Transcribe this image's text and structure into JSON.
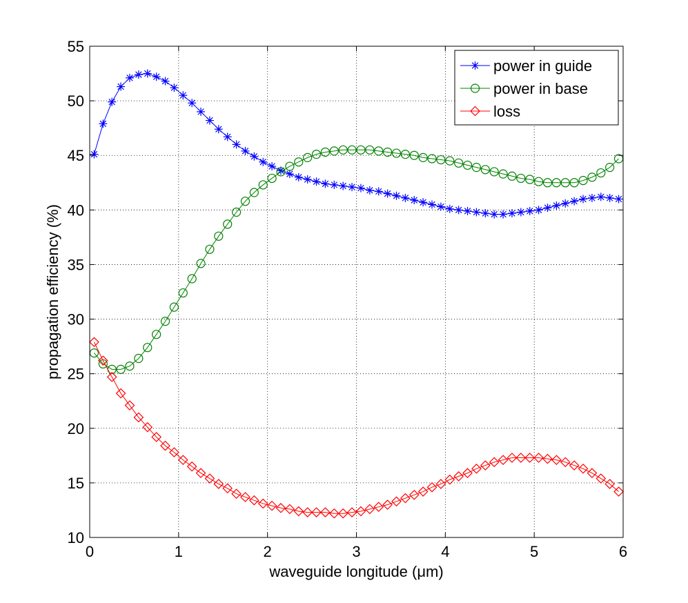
{
  "chart_data": {
    "type": "line",
    "title": "",
    "xlabel": "waveguide longitude (μm)",
    "ylabel": "propagation efficiency (%)",
    "xlim": [
      0,
      6
    ],
    "ylim": [
      10,
      55
    ],
    "xticks": [
      "0",
      "1",
      "2",
      "3",
      "4",
      "5",
      "6"
    ],
    "yticks": [
      "10",
      "15",
      "20",
      "25",
      "30",
      "35",
      "40",
      "45",
      "50",
      "55"
    ],
    "grid": true,
    "legend_position": "top-right",
    "x": [
      0.05,
      0.15,
      0.25,
      0.35,
      0.45,
      0.55,
      0.65,
      0.75,
      0.85,
      0.95,
      1.05,
      1.15,
      1.25,
      1.35,
      1.45,
      1.55,
      1.65,
      1.75,
      1.85,
      1.95,
      2.05,
      2.15,
      2.25,
      2.35,
      2.45,
      2.55,
      2.65,
      2.75,
      2.85,
      2.95,
      3.05,
      3.15,
      3.25,
      3.35,
      3.45,
      3.55,
      3.65,
      3.75,
      3.85,
      3.95,
      4.05,
      4.15,
      4.25,
      4.35,
      4.45,
      4.55,
      4.65,
      4.75,
      4.85,
      4.95,
      5.05,
      5.15,
      5.25,
      5.35,
      5.45,
      5.55,
      5.65,
      5.75,
      5.85,
      5.95
    ],
    "series": [
      {
        "name": "power in guide",
        "color": "#0000ff",
        "marker": "asterisk",
        "values": [
          45.1,
          47.9,
          49.9,
          51.3,
          52.1,
          52.4,
          52.5,
          52.2,
          51.8,
          51.2,
          50.5,
          49.8,
          49.0,
          48.2,
          47.4,
          46.7,
          46.0,
          45.4,
          44.9,
          44.4,
          44.0,
          43.6,
          43.3,
          43.0,
          42.8,
          42.6,
          42.4,
          42.3,
          42.2,
          42.1,
          42.0,
          41.8,
          41.7,
          41.5,
          41.3,
          41.1,
          40.9,
          40.7,
          40.5,
          40.3,
          40.1,
          40.0,
          39.9,
          39.8,
          39.7,
          39.6,
          39.6,
          39.7,
          39.8,
          39.9,
          40.0,
          40.2,
          40.4,
          40.6,
          40.8,
          41.0,
          41.1,
          41.2,
          41.1,
          41.0
        ]
      },
      {
        "name": "power in base",
        "color": "#008000",
        "marker": "circle",
        "values": [
          26.9,
          25.9,
          25.4,
          25.4,
          25.7,
          26.4,
          27.4,
          28.6,
          29.8,
          31.1,
          32.4,
          33.7,
          35.1,
          36.4,
          37.6,
          38.7,
          39.8,
          40.8,
          41.6,
          42.3,
          42.9,
          43.5,
          44.0,
          44.4,
          44.8,
          45.1,
          45.3,
          45.4,
          45.5,
          45.5,
          45.5,
          45.5,
          45.4,
          45.3,
          45.2,
          45.1,
          45.0,
          44.8,
          44.7,
          44.6,
          44.5,
          44.3,
          44.1,
          43.9,
          43.7,
          43.5,
          43.3,
          43.1,
          42.9,
          42.8,
          42.6,
          42.5,
          42.5,
          42.5,
          42.5,
          42.7,
          43.0,
          43.4,
          43.9,
          44.7
        ]
      },
      {
        "name": "loss",
        "color": "#ff0000",
        "marker": "diamond",
        "values": [
          27.9,
          26.2,
          24.7,
          23.2,
          22.1,
          21.0,
          20.1,
          19.2,
          18.4,
          17.8,
          17.1,
          16.5,
          15.9,
          15.4,
          14.9,
          14.5,
          14.0,
          13.7,
          13.4,
          13.1,
          12.9,
          12.7,
          12.6,
          12.4,
          12.3,
          12.3,
          12.3,
          12.2,
          12.2,
          12.3,
          12.4,
          12.6,
          12.8,
          13.0,
          13.3,
          13.6,
          13.9,
          14.2,
          14.6,
          14.9,
          15.3,
          15.6,
          15.9,
          16.3,
          16.6,
          16.9,
          17.1,
          17.3,
          17.3,
          17.3,
          17.3,
          17.2,
          17.1,
          16.9,
          16.6,
          16.3,
          15.9,
          15.4,
          14.9,
          14.2
        ]
      }
    ]
  }
}
